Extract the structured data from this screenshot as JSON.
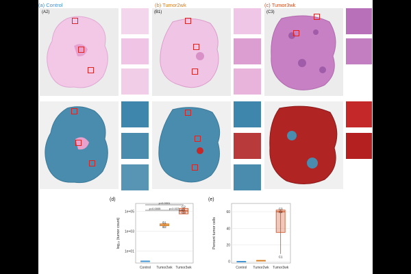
{
  "panels": {
    "a": {
      "label": "(a) Control",
      "sub": "(A2)"
    },
    "b": {
      "label": "(b) Tumor2wk",
      "sub": "(B1)"
    },
    "c": {
      "label": "(c) Tumor3wk",
      "sub": "(C3)"
    }
  },
  "charts": {
    "d": {
      "label": "(d)"
    },
    "e": {
      "label": "(e)"
    }
  },
  "chart_data": [
    {
      "id": "d",
      "type": "box",
      "categories": [
        "Control",
        "Tumor2wk",
        "Tumor3wk"
      ],
      "ylabel": "log₁₀ (tumor count)",
      "yscale": "log",
      "yticks": [
        "1e+01",
        "1e+03",
        "1e+05"
      ],
      "ytick_values": [
        1,
        3,
        5
      ],
      "ylim": [
        -0.2,
        5.8
      ],
      "colors": [
        "#3b8fd1",
        "#d97a1a",
        "#d14a1a"
      ],
      "series": [
        {
          "category": "Control",
          "min": 0,
          "q1": 0,
          "median": 0,
          "q3": 0,
          "max": 0
        },
        {
          "category": "Tumor2wk",
          "min": 3.55,
          "q1": 3.55,
          "median": 3.65,
          "q3": 3.75,
          "max": 3.75,
          "labels": [
            {
              "text": "B1",
              "v": 3.9
            },
            {
              "text": "B2",
              "v": 3.45
            }
          ]
        },
        {
          "category": "Tumor3wk",
          "min": 4.75,
          "q1": 4.75,
          "median": 5.05,
          "q3": 5.3,
          "max": 5.4,
          "labels": [
            {
              "text": "C2",
              "v": 5.48
            },
            {
              "text": "C1",
              "v": 5.18
            },
            {
              "text": "C3",
              "v": 4.92
            }
          ]
        }
      ],
      "significance": [
        {
          "text": "p<0.0001",
          "from": "Control",
          "to": "Tumor3wk"
        },
        {
          "text": "p=0.0005",
          "from": "Control",
          "to": "Tumor2wk"
        },
        {
          "text": "p=0.037",
          "from": "Tumor2wk",
          "to": "Tumor3wk"
        }
      ]
    },
    {
      "id": "e",
      "type": "box",
      "categories": [
        "Control",
        "Tumor2wk",
        "Tumor3wk"
      ],
      "ylabel": "Percent tumor cells",
      "yticks": [
        "0",
        "20",
        "40",
        "60"
      ],
      "ytick_values": [
        0,
        20,
        40,
        60
      ],
      "ylim": [
        -2,
        70
      ],
      "colors": [
        "#3b8fd1",
        "#d97a1a",
        "#d14a1a"
      ],
      "series": [
        {
          "category": "Control",
          "min": 0,
          "q1": 0,
          "median": 0,
          "q3": 0,
          "max": 0
        },
        {
          "category": "Tumor2wk",
          "min": 0.8,
          "q1": 0.8,
          "median": 1.0,
          "q3": 1.2,
          "max": 1.2
        },
        {
          "category": "Tumor3wk",
          "min": 9,
          "q1": 35,
          "median": 60,
          "q3": 62,
          "max": 63,
          "labels": [
            {
              "text": "C3",
              "v": 64
            },
            {
              "text": "C2",
              "v": 60
            },
            {
              "text": "C1",
              "v": 6
            }
          ]
        }
      ]
    }
  ]
}
